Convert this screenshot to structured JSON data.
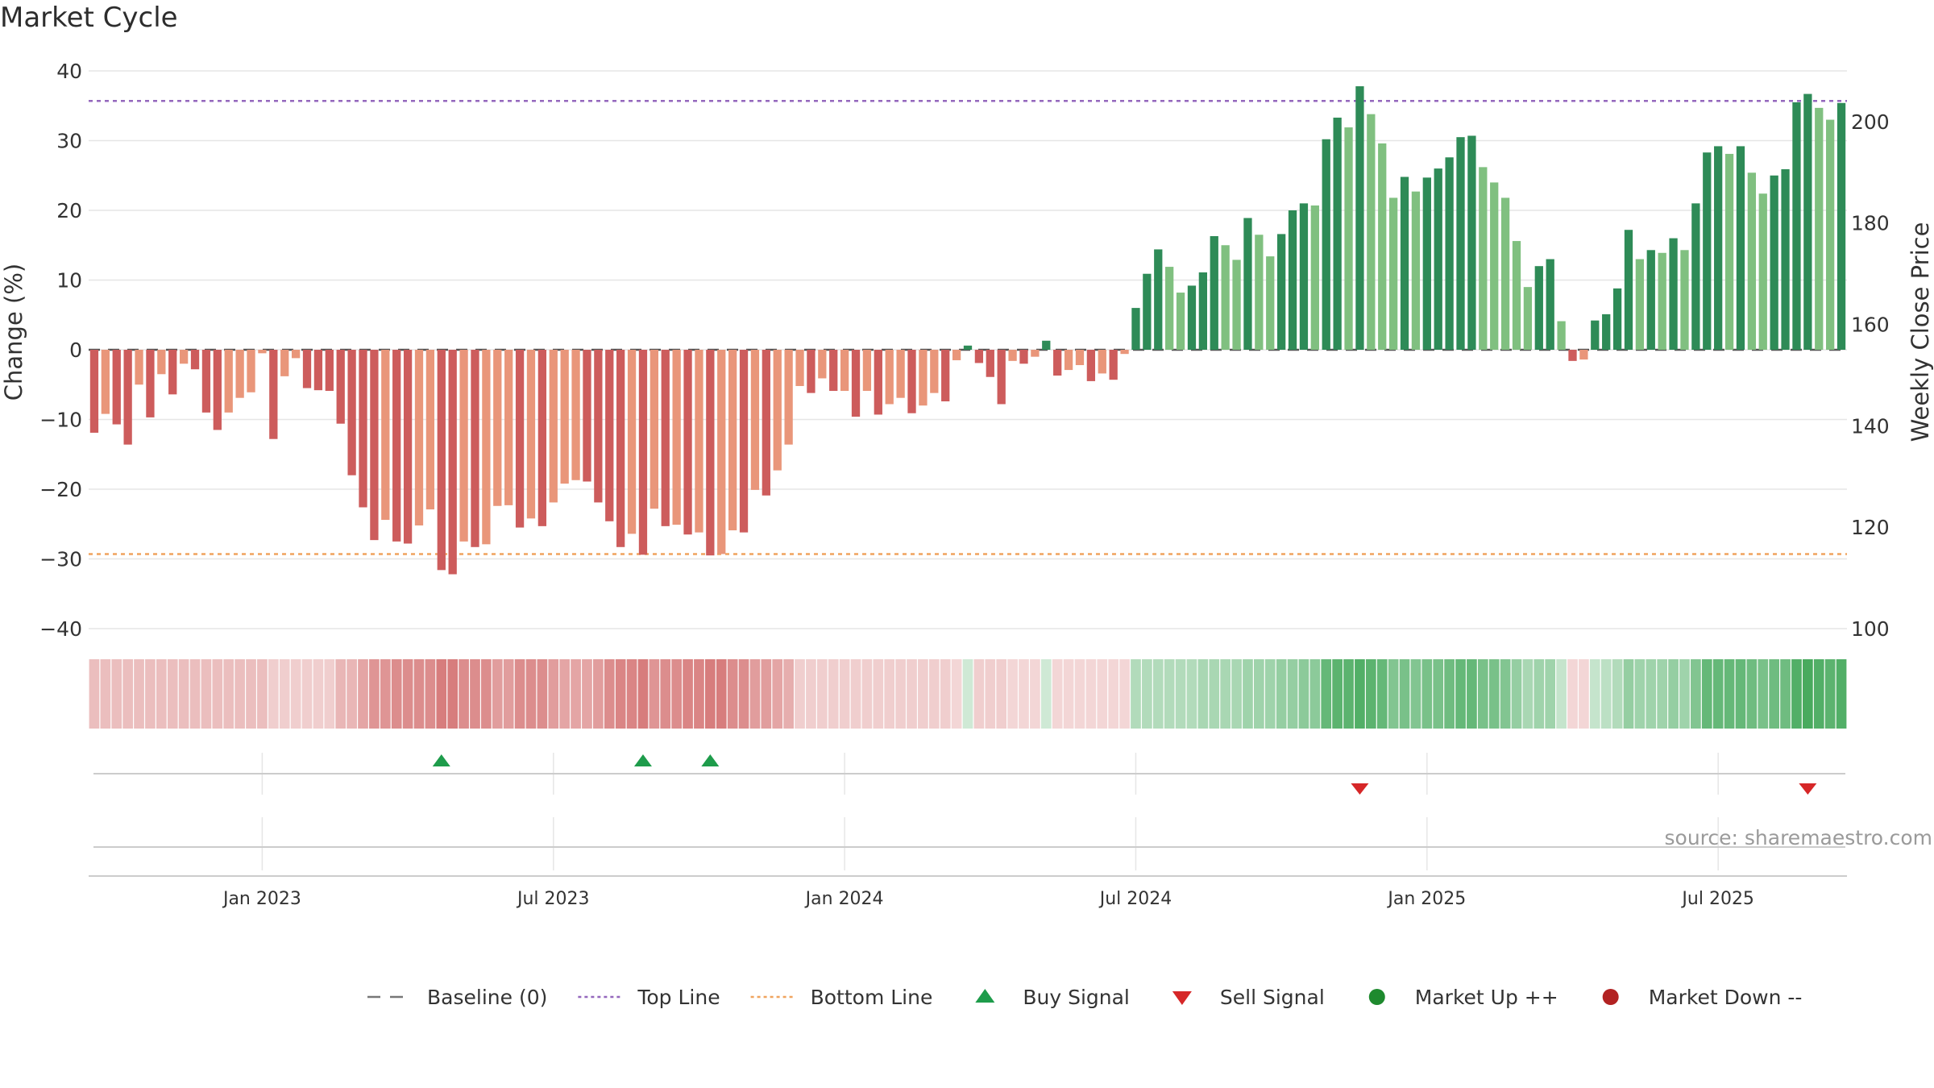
{
  "chart_data": {
    "type": "bar",
    "title": "Market Cycle",
    "ylabel": "Change (%)",
    "y2label": "Weekly Close Price",
    "ylim": [
      -40,
      40
    ],
    "yticks": [
      40,
      30,
      20,
      10,
      0,
      -10,
      -20,
      -30,
      -40
    ],
    "y2lim": [
      100,
      210
    ],
    "y2ticks": [
      200,
      180,
      160,
      140,
      120,
      100
    ],
    "top_line": 35.7,
    "bottom_line": -29.3,
    "baseline": 0,
    "x_ticks": [
      {
        "label": "Jan 2023",
        "index": 15
      },
      {
        "label": "Jul 2023",
        "index": 41
      },
      {
        "label": "Jan 2024",
        "index": 67
      },
      {
        "label": "Jul 2024",
        "index": 93
      },
      {
        "label": "Jan 2025",
        "index": 119
      },
      {
        "label": "Jul 2025",
        "index": 145
      }
    ],
    "values": [
      -11.9,
      -9.2,
      -10.7,
      -13.6,
      -5.0,
      -9.7,
      -3.5,
      -6.4,
      -2.0,
      -2.8,
      -9.0,
      -11.5,
      -9.0,
      -6.9,
      -6.1,
      -0.5,
      -12.8,
      -3.8,
      -1.2,
      -5.5,
      -5.8,
      -5.9,
      -10.6,
      -18.0,
      -22.6,
      -27.3,
      -24.4,
      -27.5,
      -27.8,
      -25.2,
      -22.9,
      -31.6,
      -32.2,
      -27.5,
      -28.3,
      -27.9,
      -22.4,
      -22.3,
      -25.5,
      -24.2,
      -25.3,
      -21.9,
      -19.2,
      -18.7,
      -18.9,
      -21.9,
      -24.6,
      -28.3,
      -26.4,
      -29.4,
      -22.8,
      -25.3,
      -25.1,
      -26.5,
      -26.2,
      -29.5,
      -29.3,
      -25.9,
      -26.2,
      -20.1,
      -20.9,
      -17.3,
      -13.6,
      -5.2,
      -6.2,
      -4.1,
      -5.9,
      -5.9,
      -9.6,
      -5.9,
      -9.3,
      -7.8,
      -6.9,
      -9.1,
      -8.0,
      -6.2,
      -7.4,
      -1.5,
      0.6,
      -1.9,
      -3.9,
      -7.8,
      -1.6,
      -2.0,
      -1.0,
      1.3,
      -3.7,
      -2.9,
      -2.2,
      -4.5,
      -3.4,
      -4.3,
      -0.6,
      6.0,
      10.9,
      14.4,
      11.9,
      8.2,
      9.2,
      11.1,
      16.3,
      15.0,
      12.9,
      18.9,
      16.5,
      13.4,
      16.6,
      20.0,
      21.0,
      20.7,
      30.2,
      33.3,
      31.9,
      37.8,
      33.8,
      29.6,
      21.8,
      24.8,
      22.7,
      24.7,
      26.0,
      27.6,
      30.5,
      30.7,
      26.2,
      24.0,
      21.8,
      15.6,
      9.0,
      12.0,
      13.0,
      4.1,
      -1.6,
      -1.4,
      4.2,
      5.1,
      8.8,
      17.2,
      13.0,
      14.3,
      13.9,
      16.0,
      14.3,
      21.0,
      28.3,
      29.2,
      28.1,
      29.2,
      25.4,
      22.4,
      25.0,
      25.9,
      35.5,
      36.7,
      34.7,
      33.0,
      35.4
    ],
    "heatstrip": [
      0.4,
      0.4,
      0.4,
      0.4,
      0.4,
      0.4,
      0.4,
      0.4,
      0.4,
      0.4,
      0.4,
      0.4,
      0.4,
      0.4,
      0.4,
      0.4,
      0.3,
      0.3,
      0.3,
      0.3,
      0.3,
      0.3,
      0.45,
      0.45,
      0.55,
      0.65,
      0.65,
      0.7,
      0.7,
      0.7,
      0.7,
      0.8,
      0.8,
      0.7,
      0.7,
      0.7,
      0.6,
      0.6,
      0.7,
      0.7,
      0.7,
      0.6,
      0.55,
      0.55,
      0.55,
      0.6,
      0.7,
      0.75,
      0.75,
      0.8,
      0.65,
      0.7,
      0.7,
      0.75,
      0.75,
      0.8,
      0.8,
      0.7,
      0.7,
      0.6,
      0.6,
      0.55,
      0.5,
      0.3,
      0.3,
      0.3,
      0.3,
      0.3,
      0.3,
      0.3,
      0.3,
      0.3,
      0.3,
      0.3,
      0.3,
      0.3,
      0.3,
      0.25,
      0.25,
      0.3,
      0.3,
      0.3,
      0.25,
      0.25,
      0.25,
      0.25,
      0.25,
      0.25,
      0.25,
      0.25,
      0.25,
      0.25,
      0.25,
      0.4,
      0.4,
      0.4,
      0.4,
      0.4,
      0.4,
      0.45,
      0.45,
      0.45,
      0.45,
      0.5,
      0.5,
      0.5,
      0.55,
      0.55,
      0.6,
      0.6,
      0.8,
      0.85,
      0.85,
      0.9,
      0.85,
      0.8,
      0.65,
      0.7,
      0.65,
      0.7,
      0.7,
      0.75,
      0.8,
      0.8,
      0.7,
      0.7,
      0.65,
      0.55,
      0.45,
      0.5,
      0.5,
      0.3,
      0.25,
      0.25,
      0.3,
      0.35,
      0.4,
      0.55,
      0.5,
      0.5,
      0.5,
      0.55,
      0.5,
      0.65,
      0.8,
      0.8,
      0.8,
      0.8,
      0.75,
      0.7,
      0.75,
      0.75,
      0.9,
      0.95,
      0.9,
      0.85,
      0.9
    ],
    "signals": [
      {
        "type": "buy",
        "index": 31
      },
      {
        "type": "buy",
        "index": 49
      },
      {
        "type": "buy",
        "index": 55
      },
      {
        "type": "sell",
        "index": 113
      },
      {
        "type": "sell",
        "index": 153
      }
    ],
    "legend": [
      {
        "label": "Baseline (0)",
        "kind": "dash",
        "color": "#777777"
      },
      {
        "label": "Top Line",
        "kind": "dot",
        "color": "#9467bd"
      },
      {
        "label": "Bottom Line",
        "kind": "dot",
        "color": "#f0a35e"
      },
      {
        "label": "Buy Signal",
        "kind": "up",
        "color": "#1e9c4b"
      },
      {
        "label": "Sell Signal",
        "kind": "down",
        "color": "#d62728"
      },
      {
        "label": "Market Up ++",
        "kind": "circle",
        "color": "#1e8a2e"
      },
      {
        "label": "Market Down --",
        "kind": "circle",
        "color": "#b22222"
      }
    ],
    "source": "source: sharemaestro.com",
    "colors": {
      "neg_dark": "#cd5c5c",
      "neg_light": "#e9967a",
      "pos_dark": "#2e8b57",
      "pos_light": "#80c080",
      "top_line": "#9467bd",
      "bottom_line": "#f0a35e",
      "heat_neg": "#cd5c5c",
      "heat_pos": "#3fa656"
    }
  }
}
